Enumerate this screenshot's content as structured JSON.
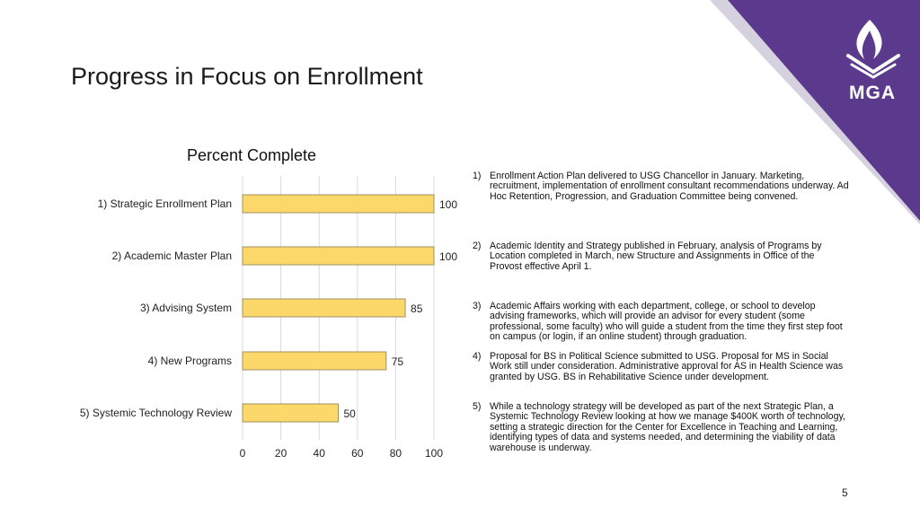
{
  "slide": {
    "title": "Progress in Focus on Enrollment",
    "page_number": "5",
    "logo_text": "MGA",
    "accent_color": "#5b3a8e",
    "bar_color": "#fcd86a",
    "bar_border_color": "#a09060"
  },
  "chart_data": {
    "type": "bar",
    "orientation": "horizontal",
    "title": "Percent Complete",
    "categories": [
      "1) Strategic Enrollment Plan",
      "2) Academic Master Plan",
      "3) Advising System",
      "4) New Programs",
      "5) Systemic Technology Review"
    ],
    "values": [
      100,
      100,
      85,
      75,
      50
    ],
    "xlim": [
      0,
      100
    ],
    "x_ticks": [
      "0",
      "20",
      "40",
      "60",
      "80",
      "100"
    ],
    "grid": true,
    "data_labels": [
      "100",
      "100",
      "85",
      "75",
      "50"
    ]
  },
  "notes": [
    {
      "num": "1)",
      "text": "Enrollment Action Plan delivered to USG Chancellor in January. Marketing, recruitment, implementation of enrollment consultant recommendations underway. Ad Hoc Retention, Progression, and Graduation Committee being convened."
    },
    {
      "num": "2)",
      "text": "Academic Identity and Strategy published in February, analysis of Programs by Location completed in March, new Structure and Assignments in Office of the Provost effective April 1."
    },
    {
      "num": "3)",
      "text": "Academic Affairs working with each department, college, or school to develop advising frameworks, which will provide an advisor for every student (some professional, some faculty) who will guide a student from the time they first step foot on campus (or login, if an online student) through graduation."
    },
    {
      "num": "4)",
      "text": "Proposal for BS in Political Science submitted to USG. Proposal for MS in Social Work still under consideration. Administrative approval for AS in Health Science was granted by USG. BS in Rehabilitative Science under development."
    },
    {
      "num": "5)",
      "text": "While a technology strategy will be developed as part of the next Strategic Plan, a Systemic Technology Review looking at how we manage $400K worth of technology, setting a strategic direction for the Center for Excellence in Teaching and Learning, identifying types of data and systems needed, and determining the viability of data warehouse is underway."
    }
  ]
}
